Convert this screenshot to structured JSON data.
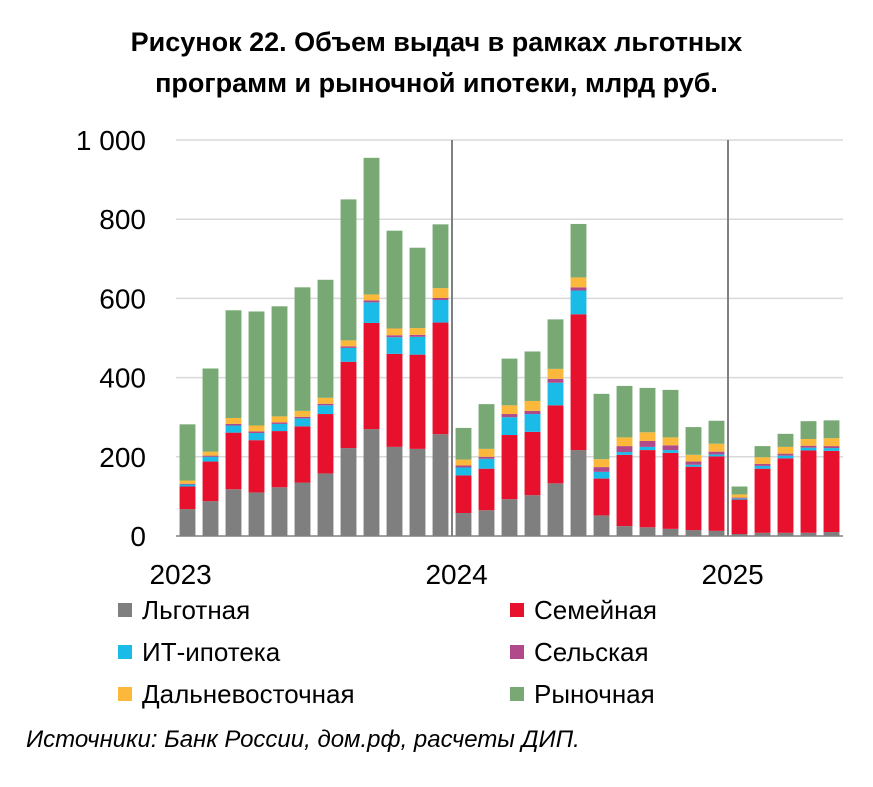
{
  "title": {
    "line1": "Рисунок 22. Объем выдач в рамках льготных",
    "line2": "программ и рыночной ипотеки, млрд руб."
  },
  "source": "Источники: Банк России, дом.рф, расчеты ДИП.",
  "colors": {
    "lgotnaya": "#7f7f7f",
    "semeynaya": "#e8112d",
    "it": "#1bbbe8",
    "selskaya": "#b04a8a",
    "dv": "#fbb83a",
    "rynochnaya": "#78a974",
    "divider": "#808080",
    "grid": "#d9d9d9"
  },
  "legend": [
    {
      "key": "lgotnaya",
      "label": "Льготная"
    },
    {
      "key": "semeynaya",
      "label": "Семейная"
    },
    {
      "key": "it",
      "label": "ИТ-ипотека"
    },
    {
      "key": "selskaya",
      "label": "Сельская"
    },
    {
      "key": "dv",
      "label": "Дальневосточная"
    },
    {
      "key": "rynochnaya",
      "label": "Рыночная"
    }
  ],
  "chart_data": {
    "type": "bar",
    "stacked": true,
    "ylim": [
      0,
      1000
    ],
    "yticks": [
      0,
      200,
      400,
      600,
      800,
      1000
    ],
    "ytick_labels": [
      "0",
      "200",
      "400",
      "600",
      "800",
      "1 000"
    ],
    "xlabels": [
      {
        "label": "2023",
        "index": 0
      },
      {
        "label": "2024",
        "index": 12
      },
      {
        "label": "2025",
        "index": 24
      }
    ],
    "year_dividers_after": [
      11,
      23
    ],
    "categories": [
      "2023-01",
      "2023-02",
      "2023-03",
      "2023-04",
      "2023-05",
      "2023-06",
      "2023-07",
      "2023-08",
      "2023-09",
      "2023-10",
      "2023-11",
      "2023-12",
      "2024-01",
      "2024-02",
      "2024-03",
      "2024-04",
      "2024-05",
      "2024-06",
      "2024-07",
      "2024-08",
      "2024-09",
      "2024-10",
      "2024-11",
      "2024-12",
      "2025-01",
      "2025-02",
      "2025-03",
      "2025-04",
      "2025-05"
    ],
    "series": [
      {
        "name": "Льготная",
        "key": "lgotnaya",
        "values": [
          68,
          88,
          118,
          110,
          123,
          135,
          158,
          222,
          270,
          225,
          220,
          257,
          58,
          65,
          93,
          103,
          133,
          217,
          52,
          25,
          22,
          18,
          15,
          13,
          5,
          8,
          8,
          8,
          10
        ]
      },
      {
        "name": "Семейная",
        "key": "semeynaya",
        "values": [
          57,
          100,
          143,
          132,
          142,
          142,
          150,
          218,
          268,
          235,
          238,
          282,
          95,
          105,
          162,
          160,
          197,
          343,
          93,
          180,
          195,
          192,
          160,
          188,
          87,
          162,
          188,
          208,
          205
        ]
      },
      {
        "name": "ИТ-ипотека",
        "key": "it",
        "values": [
          5,
          12,
          18,
          18,
          18,
          20,
          22,
          35,
          52,
          42,
          45,
          57,
          20,
          25,
          45,
          45,
          57,
          60,
          17,
          7,
          8,
          7,
          5,
          5,
          3,
          7,
          7,
          7,
          7
        ]
      },
      {
        "name": "Сельская",
        "key": "selskaya",
        "values": [
          2,
          3,
          4,
          4,
          4,
          4,
          4,
          4,
          5,
          5,
          5,
          5,
          5,
          5,
          8,
          8,
          10,
          8,
          12,
          15,
          15,
          12,
          8,
          7,
          2,
          5,
          5,
          5,
          5
        ]
      },
      {
        "name": "Дальневосточная",
        "key": "dv",
        "values": [
          8,
          10,
          15,
          15,
          15,
          15,
          15,
          15,
          15,
          17,
          17,
          25,
          15,
          20,
          22,
          25,
          25,
          25,
          20,
          22,
          22,
          20,
          17,
          20,
          8,
          17,
          17,
          17,
          20
        ]
      },
      {
        "name": "Рыночная",
        "key": "rynochnaya",
        "values": [
          142,
          210,
          272,
          288,
          278,
          312,
          298,
          356,
          345,
          247,
          203,
          161,
          80,
          113,
          118,
          125,
          125,
          135,
          165,
          130,
          112,
          120,
          70,
          58,
          20,
          28,
          33,
          45,
          45
        ]
      }
    ]
  }
}
